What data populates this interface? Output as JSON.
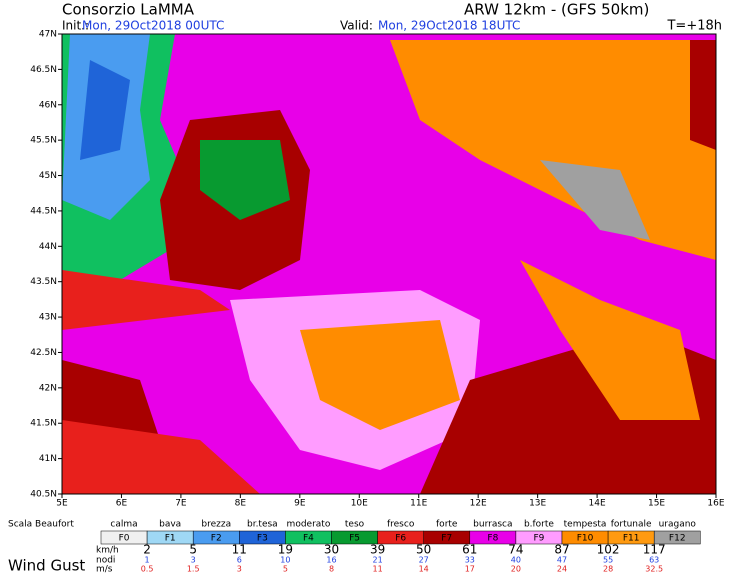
{
  "header": {
    "org": "Consorzio LaMMA",
    "model": "ARW 12km - (GFS 50km)",
    "init_label": "Init.:",
    "init": "Mon, 29Oct2018 00UTC",
    "valid_label": "Valid:",
    "valid": "Mon, 29Oct2018 18UTC",
    "step": "T=+18h"
  },
  "map": {
    "lat_labels": [
      "47N",
      "46.5N",
      "46N",
      "45.5N",
      "45N",
      "44.5N",
      "44N",
      "43.5N",
      "43N",
      "42.5N",
      "42N",
      "41.5N",
      "41N",
      "40.5N"
    ],
    "lon_labels": [
      "5E",
      "6E",
      "7E",
      "8E",
      "9E",
      "10E",
      "11E",
      "12E",
      "13E",
      "14E",
      "15E",
      "16E"
    ]
  },
  "legend": {
    "title": "Scala Beaufort",
    "footer": "Wind Gust",
    "classes": [
      {
        "name": "calma",
        "code": "F0",
        "color": "#f0f0f0"
      },
      {
        "name": "bava",
        "code": "F1",
        "color": "#9fd8f5"
      },
      {
        "name": "brezza",
        "code": "F2",
        "color": "#4a9cf0"
      },
      {
        "name": "br.tesa",
        "code": "F3",
        "color": "#1f64d8"
      },
      {
        "name": "moderato",
        "code": "F4",
        "color": "#10c060"
      },
      {
        "name": "teso",
        "code": "F5",
        "color": "#089a30"
      },
      {
        "name": "fresco",
        "code": "F6",
        "color": "#e8201c"
      },
      {
        "name": "forte",
        "code": "F7",
        "color": "#a80000"
      },
      {
        "name": "burrasca",
        "code": "F8",
        "color": "#e800e8"
      },
      {
        "name": "b.forte",
        "code": "F9",
        "color": "#ff9cff"
      },
      {
        "name": "tempesta",
        "code": "F10",
        "color": "#ff8c00"
      },
      {
        "name": "fortunale",
        "code": "F11",
        "color": "#ff9a10"
      },
      {
        "name": "uragano",
        "code": "F12",
        "color": "#a0a0a0"
      }
    ],
    "units": {
      "kmh": "km/h",
      "knots": "nodi",
      "ms": "m/s"
    },
    "kmh": [
      "2",
      "5",
      "11",
      "19",
      "30",
      "39",
      "50",
      "61",
      "74",
      "87",
      "102",
      "117"
    ],
    "knots": [
      "1",
      "3",
      "6",
      "10",
      "16",
      "21",
      "27",
      "33",
      "40",
      "47",
      "55",
      "63"
    ],
    "ms": [
      "0.5",
      "1.5",
      "3",
      "5",
      "8",
      "11",
      "14",
      "17",
      "20",
      "24",
      "28",
      "32.5"
    ]
  }
}
